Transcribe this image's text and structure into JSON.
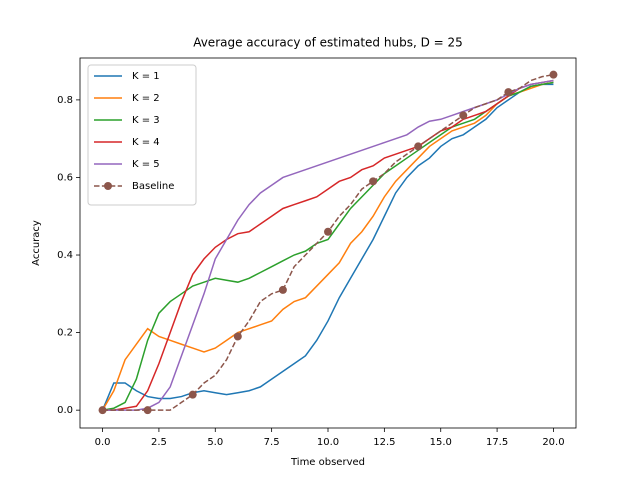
{
  "chart_data": {
    "type": "line",
    "title": "Average accuracy of estimated hubs, D = 25",
    "xlabel": "Time observed",
    "ylabel": "Accuracy",
    "x": [
      0,
      0.5,
      1,
      1.5,
      2,
      2.5,
      3,
      3.5,
      4,
      4.5,
      5,
      5.5,
      6,
      6.5,
      7,
      7.5,
      8,
      8.5,
      9,
      9.5,
      10,
      10.5,
      11,
      11.5,
      12,
      12.5,
      13,
      13.5,
      14,
      14.5,
      15,
      15.5,
      16,
      16.5,
      17,
      17.5,
      18,
      18.5,
      19,
      19.5,
      20
    ],
    "series": [
      {
        "name": "K = 1",
        "color": "#1f77b4",
        "values": [
          0,
          0.07,
          0.07,
          0.05,
          0.035,
          0.03,
          0.03,
          0.035,
          0.045,
          0.05,
          0.045,
          0.04,
          0.045,
          0.05,
          0.06,
          0.08,
          0.1,
          0.12,
          0.14,
          0.18,
          0.23,
          0.29,
          0.34,
          0.39,
          0.44,
          0.5,
          0.56,
          0.6,
          0.63,
          0.65,
          0.68,
          0.7,
          0.71,
          0.73,
          0.75,
          0.78,
          0.8,
          0.82,
          0.835,
          0.84,
          0.84
        ]
      },
      {
        "name": "K = 2",
        "color": "#ff7f0e",
        "values": [
          0,
          0.05,
          0.13,
          0.17,
          0.21,
          0.19,
          0.18,
          0.17,
          0.16,
          0.15,
          0.16,
          0.18,
          0.2,
          0.21,
          0.22,
          0.23,
          0.26,
          0.28,
          0.29,
          0.32,
          0.35,
          0.38,
          0.43,
          0.46,
          0.5,
          0.55,
          0.59,
          0.62,
          0.65,
          0.68,
          0.7,
          0.72,
          0.73,
          0.74,
          0.76,
          0.79,
          0.81,
          0.82,
          0.83,
          0.84,
          0.845
        ]
      },
      {
        "name": "K = 3",
        "color": "#2ca02c",
        "values": [
          0,
          0.005,
          0.02,
          0.08,
          0.18,
          0.25,
          0.28,
          0.3,
          0.32,
          0.33,
          0.34,
          0.335,
          0.33,
          0.34,
          0.355,
          0.37,
          0.385,
          0.4,
          0.41,
          0.43,
          0.44,
          0.48,
          0.52,
          0.55,
          0.58,
          0.61,
          0.63,
          0.65,
          0.67,
          0.69,
          0.71,
          0.73,
          0.74,
          0.75,
          0.77,
          0.79,
          0.81,
          0.82,
          0.835,
          0.84,
          0.845
        ]
      },
      {
        "name": "K = 4",
        "color": "#d62728",
        "values": [
          0,
          0,
          0.005,
          0.01,
          0.05,
          0.12,
          0.2,
          0.28,
          0.35,
          0.39,
          0.42,
          0.44,
          0.455,
          0.46,
          0.48,
          0.5,
          0.52,
          0.53,
          0.54,
          0.55,
          0.57,
          0.59,
          0.6,
          0.62,
          0.63,
          0.65,
          0.66,
          0.67,
          0.68,
          0.7,
          0.72,
          0.73,
          0.75,
          0.76,
          0.77,
          0.79,
          0.81,
          0.83,
          0.84,
          0.845,
          0.85
        ]
      },
      {
        "name": "K = 5",
        "color": "#9467bd",
        "values": [
          0,
          0,
          0,
          0,
          0.005,
          0.02,
          0.06,
          0.14,
          0.22,
          0.3,
          0.39,
          0.44,
          0.49,
          0.53,
          0.56,
          0.58,
          0.6,
          0.61,
          0.62,
          0.63,
          0.64,
          0.65,
          0.66,
          0.67,
          0.68,
          0.69,
          0.7,
          0.71,
          0.73,
          0.745,
          0.75,
          0.76,
          0.77,
          0.78,
          0.79,
          0.8,
          0.815,
          0.83,
          0.84,
          0.845,
          0.85
        ]
      },
      {
        "name": "Baseline",
        "color": "#8c564b",
        "linestyle": "dashed",
        "marker": "o",
        "markevery": 4,
        "values": [
          0,
          0,
          0,
          0,
          0,
          0,
          0,
          0.02,
          0.04,
          0.07,
          0.09,
          0.13,
          0.19,
          0.23,
          0.28,
          0.3,
          0.31,
          0.37,
          0.4,
          0.43,
          0.46,
          0.5,
          0.53,
          0.57,
          0.59,
          0.61,
          0.64,
          0.66,
          0.68,
          0.7,
          0.72,
          0.74,
          0.76,
          0.78,
          0.79,
          0.8,
          0.82,
          0.83,
          0.85,
          0.86,
          0.865
        ]
      }
    ],
    "xlim": [
      -1,
      21
    ],
    "ylim": [
      -0.046,
      0.908
    ],
    "xticks": [
      {
        "value": 0,
        "label": "0.0"
      },
      2.5,
      {
        "value": 5,
        "label": "5.0"
      },
      7.5,
      {
        "value": 10,
        "label": "10.0"
      },
      12.5,
      {
        "value": 15,
        "label": "15.0"
      },
      17.5,
      {
        "value": 20,
        "label": "20.0"
      }
    ],
    "yticks": [
      {
        "value": 0,
        "label": "0.0"
      },
      0.2,
      0.4,
      0.6,
      0.8
    ],
    "legend": "upper left"
  }
}
